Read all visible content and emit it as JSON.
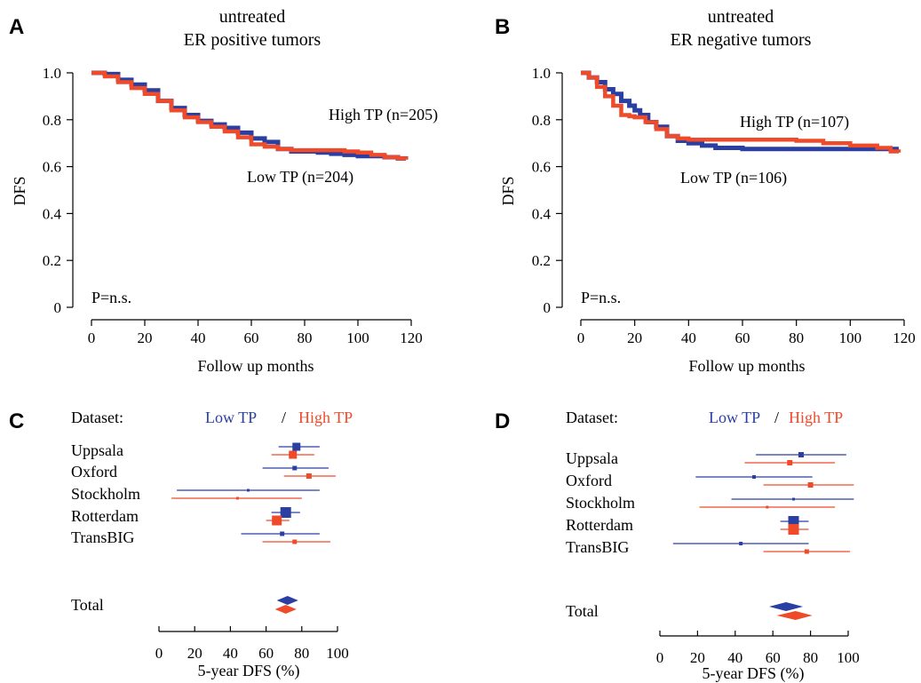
{
  "colors": {
    "low": "#2b3fa3",
    "high": "#ef4a2a"
  },
  "chart_data": [
    {
      "panel": "A",
      "type": "line",
      "title_lines": [
        "untreated",
        "ER positive tumors"
      ],
      "xlabel": "Follow up months",
      "ylabel": "DFS",
      "xlim": [
        0,
        120
      ],
      "ylim": [
        0,
        1.0
      ],
      "xticks": [
        "0",
        "20",
        "40",
        "60",
        "80",
        "100",
        "120"
      ],
      "yticks": [
        "0",
        "0.2",
        "0.4",
        "0.6",
        "0.8",
        "1.0"
      ],
      "pvalue": "P=n.s.",
      "labels": {
        "high": "High TP  (n=205)",
        "low": "Low TP  (n=204)"
      },
      "series": [
        {
          "name": "High TP",
          "color_key": "low",
          "points": [
            [
              0,
              1.0
            ],
            [
              5,
              0.995
            ],
            [
              10,
              0.97
            ],
            [
              15,
              0.95
            ],
            [
              20,
              0.925
            ],
            [
              25,
              0.88
            ],
            [
              30,
              0.85
            ],
            [
              35,
              0.82
            ],
            [
              40,
              0.795
            ],
            [
              45,
              0.78
            ],
            [
              50,
              0.765
            ],
            [
              55,
              0.745
            ],
            [
              60,
              0.72
            ],
            [
              65,
              0.705
            ],
            [
              70,
              0.675
            ],
            [
              75,
              0.665
            ],
            [
              80,
              0.665
            ],
            [
              85,
              0.66
            ],
            [
              90,
              0.655
            ],
            [
              95,
              0.65
            ],
            [
              100,
              0.645
            ],
            [
              105,
              0.645
            ],
            [
              110,
              0.64
            ],
            [
              115,
              0.635
            ],
            [
              118,
              0.63
            ]
          ]
        },
        {
          "name": "Low TP",
          "color_key": "high",
          "points": [
            [
              0,
              1.0
            ],
            [
              5,
              0.985
            ],
            [
              10,
              0.96
            ],
            [
              15,
              0.935
            ],
            [
              20,
              0.91
            ],
            [
              25,
              0.88
            ],
            [
              30,
              0.84
            ],
            [
              35,
              0.81
            ],
            [
              40,
              0.79
            ],
            [
              45,
              0.77
            ],
            [
              50,
              0.75
            ],
            [
              55,
              0.725
            ],
            [
              60,
              0.695
            ],
            [
              65,
              0.685
            ],
            [
              70,
              0.675
            ],
            [
              75,
              0.67
            ],
            [
              80,
              0.67
            ],
            [
              85,
              0.67
            ],
            [
              90,
              0.67
            ],
            [
              95,
              0.665
            ],
            [
              100,
              0.66
            ],
            [
              105,
              0.65
            ],
            [
              110,
              0.64
            ],
            [
              115,
              0.635
            ],
            [
              118,
              0.63
            ]
          ]
        }
      ]
    },
    {
      "panel": "B",
      "type": "line",
      "title_lines": [
        "untreated",
        "ER negative tumors"
      ],
      "xlabel": "Follow up months",
      "ylabel": "DFS",
      "xlim": [
        0,
        120
      ],
      "ylim": [
        0,
        1.0
      ],
      "xticks": [
        "0",
        "20",
        "40",
        "60",
        "80",
        "100",
        "120"
      ],
      "yticks": [
        "0",
        "0.2",
        "0.4",
        "0.6",
        "0.8",
        "1.0"
      ],
      "pvalue": "P=n.s.",
      "labels": {
        "high": "High TP  (n=107)",
        "low": "Low TP  (n=106)"
      },
      "series": [
        {
          "name": "High TP",
          "color_key": "low",
          "points": [
            [
              0,
              1.0
            ],
            [
              3,
              0.98
            ],
            [
              6,
              0.96
            ],
            [
              9,
              0.93
            ],
            [
              12,
              0.91
            ],
            [
              15,
              0.88
            ],
            [
              18,
              0.86
            ],
            [
              20,
              0.84
            ],
            [
              22,
              0.82
            ],
            [
              25,
              0.79
            ],
            [
              28,
              0.77
            ],
            [
              32,
              0.73
            ],
            [
              36,
              0.71
            ],
            [
              40,
              0.7
            ],
            [
              45,
              0.69
            ],
            [
              50,
              0.68
            ],
            [
              60,
              0.675
            ],
            [
              80,
              0.675
            ],
            [
              100,
              0.675
            ],
            [
              110,
              0.675
            ],
            [
              118,
              0.675
            ]
          ]
        },
        {
          "name": "Low TP",
          "color_key": "high",
          "points": [
            [
              0,
              1.0
            ],
            [
              3,
              0.98
            ],
            [
              6,
              0.94
            ],
            [
              9,
              0.9
            ],
            [
              12,
              0.86
            ],
            [
              15,
              0.82
            ],
            [
              18,
              0.815
            ],
            [
              20,
              0.81
            ],
            [
              24,
              0.79
            ],
            [
              28,
              0.76
            ],
            [
              32,
              0.73
            ],
            [
              36,
              0.72
            ],
            [
              40,
              0.715
            ],
            [
              50,
              0.715
            ],
            [
              60,
              0.715
            ],
            [
              70,
              0.715
            ],
            [
              80,
              0.71
            ],
            [
              90,
              0.7
            ],
            [
              100,
              0.69
            ],
            [
              110,
              0.68
            ],
            [
              115,
              0.665
            ],
            [
              118,
              0.66
            ]
          ]
        }
      ]
    },
    {
      "panel": "C",
      "type": "forest",
      "dataset_label": "Dataset:",
      "legend": {
        "low": "Low TP",
        "sep": "/",
        "high": "High TP"
      },
      "xlabel": "5-year DFS (%)",
      "xlim": [
        0,
        100
      ],
      "xticks": [
        "0",
        "20",
        "40",
        "60",
        "80",
        "100"
      ],
      "rows": [
        {
          "name": "Uppsala",
          "low": {
            "est": 77,
            "lo": 67,
            "hi": 90,
            "size": 9
          },
          "high": {
            "est": 75,
            "lo": 63,
            "hi": 87,
            "size": 9
          }
        },
        {
          "name": "Oxford",
          "low": {
            "est": 76,
            "lo": 58,
            "hi": 95,
            "size": 5
          },
          "high": {
            "est": 84,
            "lo": 70,
            "hi": 99,
            "size": 6
          }
        },
        {
          "name": "Stockholm",
          "low": {
            "est": 50,
            "lo": 10,
            "hi": 90,
            "size": 3
          },
          "high": {
            "est": 44,
            "lo": 7,
            "hi": 80,
            "size": 3
          }
        },
        {
          "name": "Rotterdam",
          "low": {
            "est": 71,
            "lo": 63,
            "hi": 79,
            "size": 12
          },
          "high": {
            "est": 66,
            "lo": 60,
            "hi": 73,
            "size": 11
          }
        },
        {
          "name": "TransBIG",
          "low": {
            "est": 69,
            "lo": 46,
            "hi": 90,
            "size": 5
          },
          "high": {
            "est": 76,
            "lo": 58,
            "hi": 96,
            "size": 5
          }
        }
      ],
      "total": {
        "name": "Total",
        "low": {
          "est": 72,
          "lo": 66,
          "hi": 78
        },
        "high": {
          "est": 71,
          "lo": 65,
          "hi": 77
        }
      }
    },
    {
      "panel": "D",
      "type": "forest",
      "dataset_label": "Dataset:",
      "legend": {
        "low": "Low TP",
        "sep": "/",
        "high": "High TP"
      },
      "xlabel": "5-year DFS (%)",
      "xlim": [
        0,
        100
      ],
      "xticks": [
        "0",
        "20",
        "40",
        "60",
        "80",
        "100"
      ],
      "rows": [
        {
          "name": "Uppsala",
          "low": {
            "est": 75,
            "lo": 51,
            "hi": 99,
            "size": 6
          },
          "high": {
            "est": 69,
            "lo": 45,
            "hi": 93,
            "size": 6
          }
        },
        {
          "name": "Oxford",
          "low": {
            "est": 50,
            "lo": 19,
            "hi": 81,
            "size": 4
          },
          "high": {
            "est": 80,
            "lo": 55,
            "hi": 103,
            "size": 6
          }
        },
        {
          "name": "Stockholm",
          "low": {
            "est": 71,
            "lo": 38,
            "hi": 103,
            "size": 3
          },
          "high": {
            "est": 57,
            "lo": 21,
            "hi": 93,
            "size": 3
          }
        },
        {
          "name": "Rotterdam",
          "low": {
            "est": 71,
            "lo": 64,
            "hi": 79,
            "size": 12
          },
          "high": {
            "est": 71,
            "lo": 64,
            "hi": 79,
            "size": 12
          }
        },
        {
          "name": "TransBIG",
          "low": {
            "est": 43,
            "lo": 7,
            "hi": 79,
            "size": 4
          },
          "high": {
            "est": 78,
            "lo": 55,
            "hi": 101,
            "size": 5
          }
        }
      ],
      "total": {
        "name": "Total",
        "low": {
          "est": 67,
          "lo": 58,
          "hi": 76
        },
        "high": {
          "est": 72,
          "lo": 62,
          "hi": 81
        }
      }
    }
  ]
}
